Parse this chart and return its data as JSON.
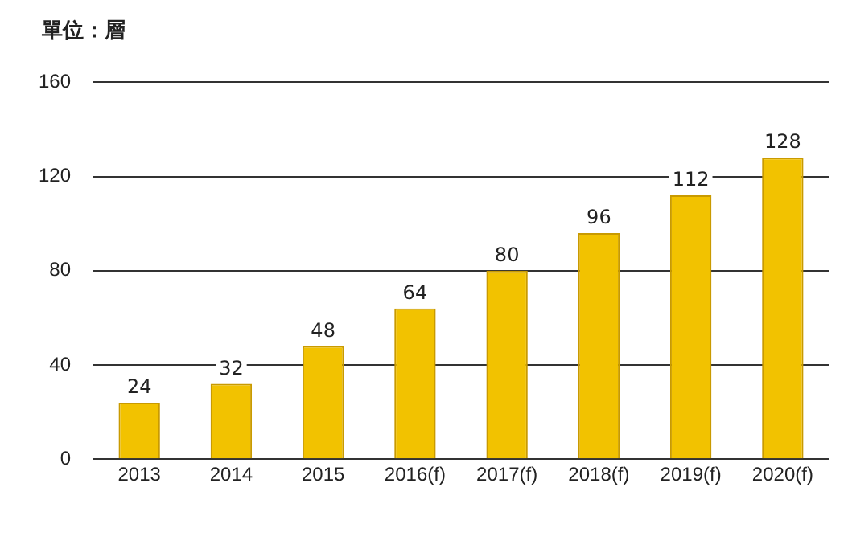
{
  "chart_data": {
    "type": "bar",
    "title": "單位：層",
    "categories": [
      "2013",
      "2014",
      "2015",
      "2016(f)",
      "2017(f)",
      "2018(f)",
      "2019(f)",
      "2020(f)"
    ],
    "values": [
      24,
      32,
      48,
      64,
      80,
      96,
      112,
      128
    ],
    "color": "#f2c200",
    "ylim": [
      0,
      160
    ],
    "yticks": [
      0,
      40,
      80,
      120,
      160
    ],
    "grid": "y",
    "data_labels": true,
    "legend": false
  }
}
